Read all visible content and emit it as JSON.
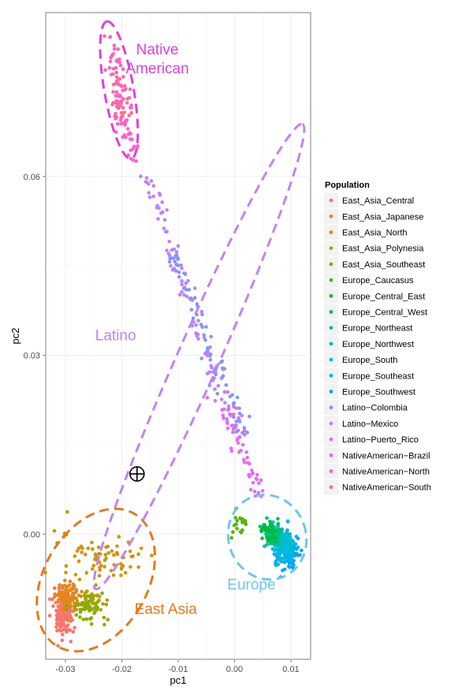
{
  "chart_data": {
    "type": "scatter",
    "xlabel": "pc1",
    "ylabel": "pc2",
    "xlim": [
      -0.0335,
      0.0135
    ],
    "ylim": [
      -0.021,
      0.0875
    ],
    "x_ticks": [
      -0.03,
      -0.02,
      -0.01,
      0.0,
      0.01
    ],
    "x_tick_labels": [
      "-0.03",
      "-0.02",
      "-0.01",
      "0.00",
      "0.01"
    ],
    "y_ticks": [
      0.0,
      0.03,
      0.06
    ],
    "y_tick_labels": [
      "0.00",
      "0.03",
      "0.06"
    ],
    "grid": true,
    "legend": {
      "title": "Population",
      "position": "right",
      "entries": [
        {
          "name": "East_Asia_Central",
          "color": "#F8766D"
        },
        {
          "name": "East_Asia_Japanese",
          "color": "#E7851E"
        },
        {
          "name": "East_Asia_North",
          "color": "#D09400"
        },
        {
          "name": "East_Asia_Polynesia",
          "color": "#B2A100"
        },
        {
          "name": "East_Asia_Southeast",
          "color": "#8BAB00"
        },
        {
          "name": "Europe_Caucasus",
          "color": "#55B400"
        },
        {
          "name": "Europe_Central_East",
          "color": "#00BA38"
        },
        {
          "name": "Europe_Central_West",
          "color": "#00BE6C"
        },
        {
          "name": "Europe_Northeast",
          "color": "#00C08E"
        },
        {
          "name": "Europe_Northwest",
          "color": "#00C0AF"
        },
        {
          "name": "Europe_South",
          "color": "#00BCD8"
        },
        {
          "name": "Europe_Southeast",
          "color": "#00B6EB"
        },
        {
          "name": "Europe_Southwest",
          "color": "#06A4FF"
        },
        {
          "name": "Latino−Colombia",
          "color": "#7F96FF"
        },
        {
          "name": "Latino−Mexico",
          "color": "#B983FF"
        },
        {
          "name": "Latino−Puerto_Rico",
          "color": "#E76BF3"
        },
        {
          "name": "NativeAmerican−Brazil",
          "color": "#FD61D1"
        },
        {
          "name": "NativeAmerican−North",
          "color": "#FF62BC"
        },
        {
          "name": "NativeAmerican−South",
          "color": "#FF6C91"
        }
      ]
    },
    "clusters": [
      {
        "label": "Native American",
        "label_lines": [
          "Native",
          "American"
        ],
        "color": "#E040D8",
        "center": [
          -0.0205,
          0.0745
        ],
        "semi_axes": [
          0.0026,
          0.0117
        ],
        "rotation_deg": -100
      },
      {
        "label": "Latino",
        "label_lines": [
          "Latino"
        ],
        "color": "#C183F5",
        "center": [
          -0.0063,
          0.0298
        ],
        "semi_axes": [
          0.0037,
          0.0427
        ],
        "rotation_deg": -66
      },
      {
        "label": "Europe",
        "label_lines": [
          "Europe"
        ],
        "color": "#6CC6EE",
        "center": [
          0.0058,
          -0.0005
        ],
        "semi_axes": [
          0.0076,
          0.0065
        ],
        "rotation_deg": -20
      },
      {
        "label": "East Asia",
        "label_lines": [
          "East Asia"
        ],
        "color": "#E57A1C",
        "center": [
          -0.0246,
          -0.0077
        ],
        "semi_axes": [
          0.0136,
          0.0087
        ],
        "rotation_deg": 30
      }
    ],
    "cluster_label_positions": [
      {
        "label": "Native American",
        "x": -0.0137,
        "y": 0.0805
      },
      {
        "label": "Latino",
        "x": -0.0211,
        "y": 0.0325
      },
      {
        "label": "Europe",
        "x": 0.003,
        "y": -0.0093
      },
      {
        "label": "East Asia",
        "x": -0.0122,
        "y": -0.0134
      }
    ],
    "marker": {
      "name": "circle-plus-marker",
      "x": -0.0173,
      "y": 0.0101
    },
    "groups": [
      {
        "name": "NativeAmerican−North",
        "color": "#FF62BC",
        "n": 60,
        "distribution": "line",
        "from": [
          -0.0218,
          0.0835
        ],
        "to": [
          -0.0195,
          0.0665
        ],
        "spread": 0.0008
      },
      {
        "name": "NativeAmerican−South",
        "color": "#FF6C91",
        "n": 25,
        "distribution": "line",
        "from": [
          -0.0212,
          0.078
        ],
        "to": [
          -0.0193,
          0.07
        ],
        "spread": 0.0008
      },
      {
        "name": "NativeAmerican−Brazil",
        "color": "#FD61D1",
        "n": 25,
        "distribution": "line",
        "from": [
          -0.0202,
          0.075
        ],
        "to": [
          -0.0176,
          0.0625
        ],
        "spread": 0.0008
      },
      {
        "name": "Latino−Mexico",
        "color": "#B983FF",
        "n": 110,
        "distribution": "line",
        "from": [
          -0.0155,
          0.06
        ],
        "to": [
          0.0,
          0.0175
        ],
        "spread": 0.0009
      },
      {
        "name": "Latino−Puerto_Rico",
        "color": "#E76BF3",
        "n": 55,
        "distribution": "line",
        "from": [
          -0.002,
          0.022
        ],
        "to": [
          0.005,
          0.005
        ],
        "spread": 0.0009
      },
      {
        "name": "Latino−Colombia",
        "color": "#7F96FF",
        "n": 60,
        "distribution": "line",
        "from": [
          -0.011,
          0.0475
        ],
        "to": [
          0.002,
          0.016
        ],
        "spread": 0.001
      },
      {
        "name": "Europe_Southwest",
        "color": "#06A4FF",
        "n": 110,
        "distribution": "blob",
        "center": [
          0.0092,
          -0.0032
        ],
        "spread": [
          0.001,
          0.0012
        ]
      },
      {
        "name": "Europe_Southeast",
        "color": "#00B6EB",
        "n": 70,
        "distribution": "blob",
        "center": [
          0.0083,
          -0.0015
        ],
        "spread": [
          0.001,
          0.0012
        ]
      },
      {
        "name": "Europe_South",
        "color": "#00BCD8",
        "n": 60,
        "distribution": "blob",
        "center": [
          0.009,
          -0.002
        ],
        "spread": [
          0.0009,
          0.0012
        ]
      },
      {
        "name": "Europe_Northwest",
        "color": "#00C0AF",
        "n": 55,
        "distribution": "blob",
        "center": [
          0.0072,
          -0.0004
        ],
        "spread": [
          0.0009,
          0.0009
        ]
      },
      {
        "name": "Europe_Northeast",
        "color": "#00C08E",
        "n": 35,
        "distribution": "blob",
        "center": [
          0.0062,
          -0.0002
        ],
        "spread": [
          0.0008,
          0.0008
        ]
      },
      {
        "name": "Europe_Central_West",
        "color": "#00BE6C",
        "n": 30,
        "distribution": "blob",
        "center": [
          0.0068,
          0.0004
        ],
        "spread": [
          0.0008,
          0.0009
        ]
      },
      {
        "name": "Europe_Central_East",
        "color": "#00BA38",
        "n": 25,
        "distribution": "blob",
        "center": [
          0.006,
          0.0002
        ],
        "spread": [
          0.0008,
          0.0008
        ]
      },
      {
        "name": "Europe_Caucasus",
        "color": "#55B400",
        "n": 18,
        "distribution": "blob",
        "center": [
          0.0012,
          0.0015
        ],
        "spread": [
          0.001,
          0.001
        ]
      },
      {
        "name": "East_Asia_Central",
        "color": "#F8766D",
        "n": 170,
        "distribution": "blob",
        "center": [
          -0.0303,
          -0.013
        ],
        "spread": [
          0.0009,
          0.0017
        ]
      },
      {
        "name": "East_Asia_Japanese",
        "color": "#E7851E",
        "n": 80,
        "distribution": "blob",
        "center": [
          -0.0295,
          -0.0105
        ],
        "spread": [
          0.001,
          0.0012
        ]
      },
      {
        "name": "East_Asia_North",
        "color": "#D09400",
        "n": 70,
        "distribution": "blob",
        "center": [
          -0.0235,
          -0.004
        ],
        "spread": [
          0.004,
          0.0022
        ]
      },
      {
        "name": "East_Asia_Polynesia",
        "color": "#B2A100",
        "n": 35,
        "distribution": "blob",
        "center": [
          -0.0262,
          -0.011
        ],
        "spread": [
          0.0015,
          0.001
        ]
      },
      {
        "name": "East_Asia_Southeast",
        "color": "#8BAB00",
        "n": 45,
        "distribution": "blob",
        "center": [
          -0.0265,
          -0.0125
        ],
        "spread": [
          0.002,
          0.0013
        ]
      }
    ]
  }
}
